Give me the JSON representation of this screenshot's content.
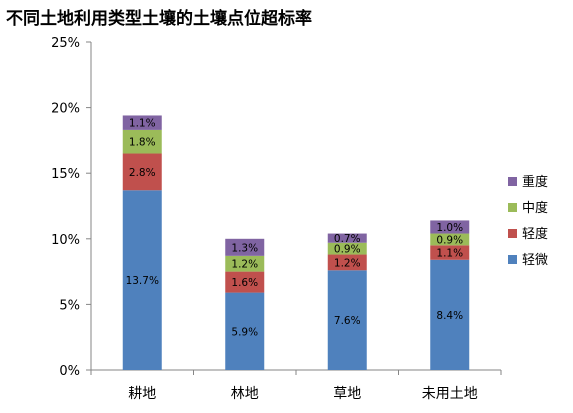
{
  "chart_data": {
    "type": "bar",
    "stacked": true,
    "title": "不同土地利用类型土壤的土壤点位超标率",
    "categories": [
      "耕地",
      "林地",
      "草地",
      "未用土地"
    ],
    "series": [
      {
        "name": "轻微",
        "color": "#4F81BD",
        "values": [
          13.7,
          5.9,
          7.6,
          8.4
        ],
        "labels": [
          "13.7%",
          "5.9%",
          "7.6%",
          "8.4%"
        ]
      },
      {
        "name": "轻度",
        "color": "#C0504D",
        "values": [
          2.8,
          1.6,
          1.2,
          1.1
        ],
        "labels": [
          "2.8%",
          "1.6%",
          "1.2%",
          "1.1%"
        ]
      },
      {
        "name": "中度",
        "color": "#9BBB59",
        "values": [
          1.8,
          1.2,
          0.9,
          0.9
        ],
        "labels": [
          "1.8%",
          "1.2%",
          "0.9%",
          "0.9%"
        ]
      },
      {
        "name": "重度",
        "color": "#8064A2",
        "values": [
          1.1,
          1.3,
          0.7,
          1.0
        ],
        "labels": [
          "1.1%",
          "1.3%",
          "0.7%",
          "1.0%"
        ]
      }
    ],
    "ylim": [
      0,
      25
    ],
    "yticks": [
      0,
      5,
      10,
      15,
      20,
      25
    ],
    "ytick_labels": [
      "0%",
      "5%",
      "10%",
      "15%",
      "20%",
      "25%"
    ],
    "grid": false,
    "legend_position": "right"
  }
}
